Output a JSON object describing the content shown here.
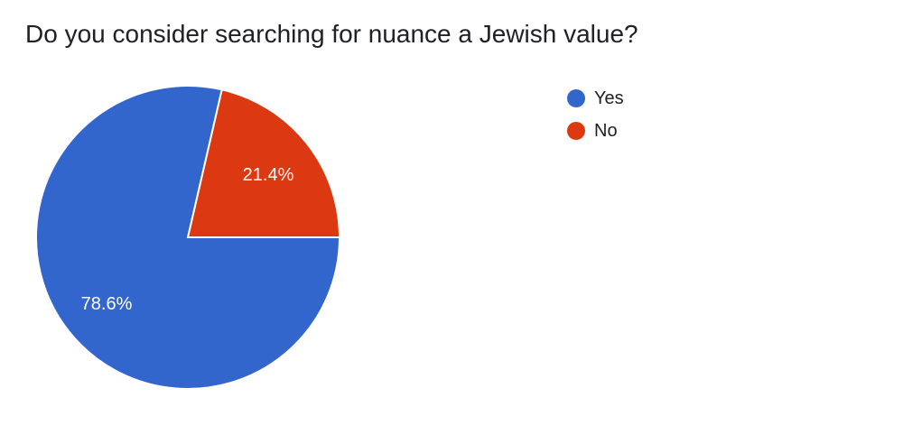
{
  "chart_data": {
    "type": "pie",
    "title": "Do you consider searching for nuance a Jewish value?",
    "legend_position": "right",
    "slices": [
      {
        "label": "Yes",
        "value": 78.6,
        "display": "78.6%",
        "color": "#3366cc"
      },
      {
        "label": "No",
        "value": 21.4,
        "display": "21.4%",
        "color": "#dc3912"
      }
    ]
  }
}
